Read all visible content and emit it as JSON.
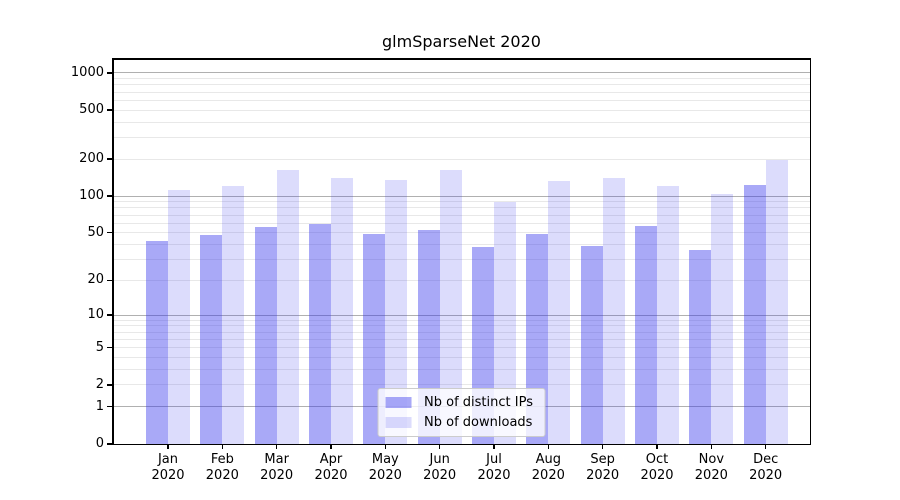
{
  "chart_data": {
    "type": "bar",
    "title": "glmSparseNet 2020",
    "y_scale": "log1p",
    "y_ticks": [
      0,
      1,
      2,
      5,
      10,
      20,
      50,
      100,
      200,
      500,
      1000
    ],
    "ylim": [
      0,
      1300
    ],
    "grid": true,
    "legend_position": "lower center",
    "x_year": "2020",
    "categories": [
      "Jan",
      "Feb",
      "Mar",
      "Apr",
      "May",
      "Jun",
      "Jul",
      "Aug",
      "Sep",
      "Oct",
      "Nov",
      "Dec"
    ],
    "series": [
      {
        "name": "Nb of distinct IPs",
        "color": "rgba(50,50,235,0.42)",
        "values": [
          43,
          48,
          56,
          59,
          49,
          53,
          38,
          49,
          39,
          57,
          36,
          123
        ]
      },
      {
        "name": "Nb of downloads",
        "color": "rgba(50,50,235,0.17)",
        "values": [
          112,
          120,
          163,
          140,
          135,
          163,
          90,
          133,
          140,
          121,
          104,
          198
        ]
      }
    ],
    "colors": {
      "grid_major": "#b0b0b0",
      "grid_minor": "#e8e8e8",
      "spine": "#000000",
      "text": "#000000"
    }
  }
}
